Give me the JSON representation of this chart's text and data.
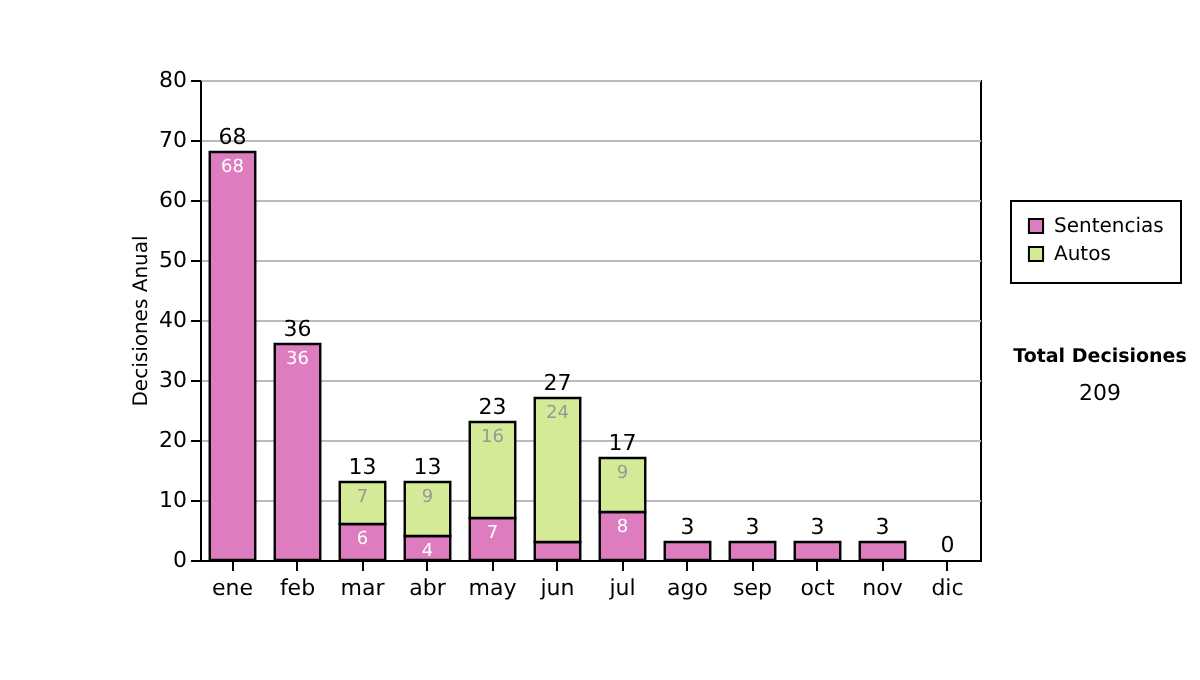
{
  "chart_data": {
    "type": "bar",
    "stacked": true,
    "ylabel": "Decisiones Anual",
    "categories": [
      "ene",
      "feb",
      "mar",
      "abr",
      "may",
      "jun",
      "jul",
      "ago",
      "sep",
      "oct",
      "nov",
      "dic"
    ],
    "series": [
      {
        "name": "Sentencias",
        "color": "#dd7dbf",
        "values": [
          68,
          36,
          6,
          4,
          7,
          3,
          8,
          3,
          3,
          3,
          3,
          0
        ],
        "value_labels": [
          "68",
          "36",
          "6",
          "4",
          "7",
          null,
          "8",
          null,
          null,
          null,
          null,
          null
        ]
      },
      {
        "name": "Autos",
        "color": "#d4ea96",
        "values": [
          0,
          0,
          7,
          9,
          16,
          24,
          9,
          0,
          0,
          0,
          0,
          0
        ],
        "value_labels": [
          null,
          null,
          "7",
          "9",
          "16",
          "24",
          "9",
          null,
          null,
          null,
          null,
          null
        ]
      }
    ],
    "totals": [
      "68",
      "36",
      "13",
      "13",
      "23",
      "27",
      "17",
      "3",
      "3",
      "3",
      "3",
      "0"
    ],
    "ylim": [
      0,
      80
    ],
    "yticks": [
      0,
      10,
      20,
      30,
      40,
      50,
      60,
      70,
      80
    ],
    "grid": "y",
    "legend": "right",
    "annotations": [
      "Total Decisiones",
      "209"
    ]
  }
}
